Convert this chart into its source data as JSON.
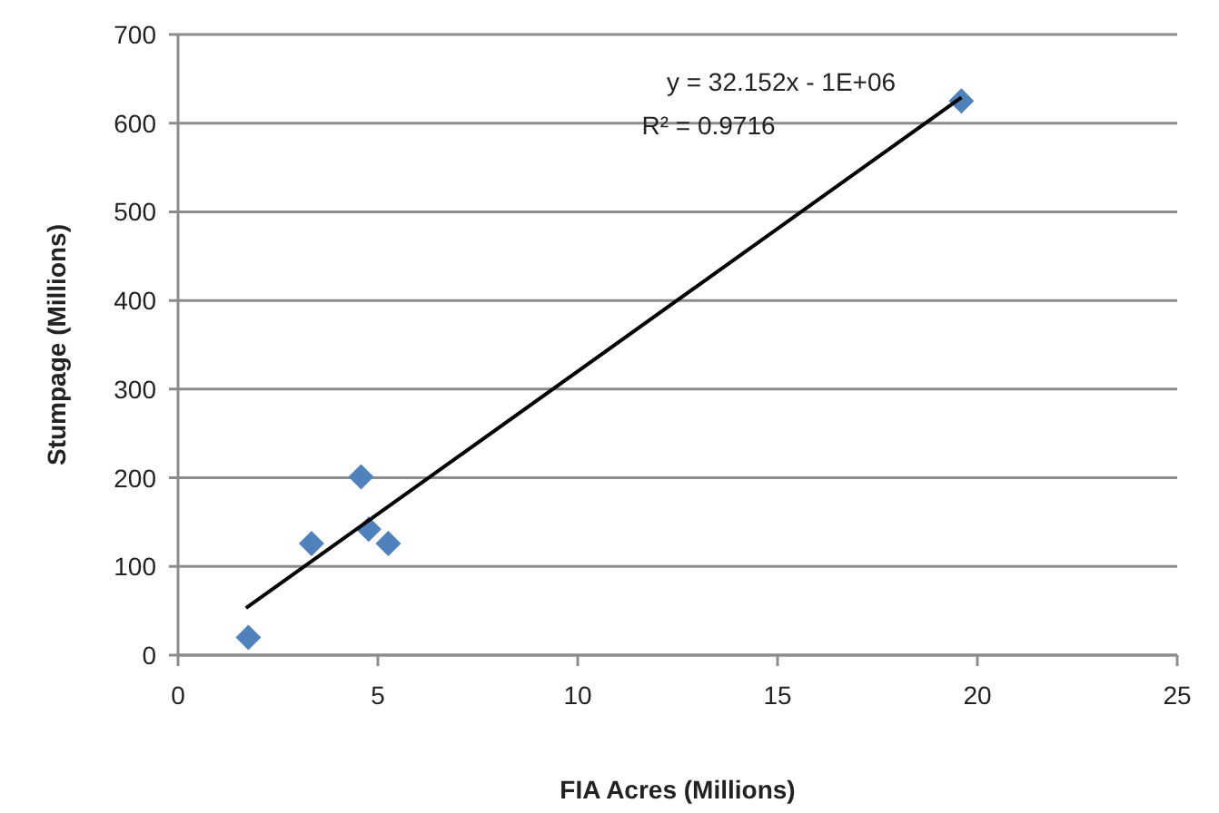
{
  "chart_data": {
    "type": "scatter",
    "xlabel": "FIA Acres (Millions)",
    "ylabel": "Stumpage (Millions)",
    "xlim": [
      0,
      25
    ],
    "xticks": [
      0,
      5,
      10,
      15,
      20,
      25
    ],
    "ylim": [
      0,
      700
    ],
    "yticks": [
      0,
      100,
      200,
      300,
      400,
      500,
      600,
      700
    ],
    "grid": "y",
    "marker": "diamond",
    "series": [
      {
        "color": "#4f81bd",
        "x": [
          1.76,
          3.34,
          4.58,
          4.77,
          5.26,
          19.6
        ],
        "values": [
          20,
          126,
          201,
          142,
          126,
          625
        ]
      },
      {
        "type": "line",
        "color": "#000000",
        "marker": "none",
        "x": [
          1.7,
          19.6
        ],
        "values": [
          53,
          629
        ]
      }
    ],
    "annotations": [
      "y = 32.152x - 1E+06",
      "R² = 0.9716"
    ]
  }
}
